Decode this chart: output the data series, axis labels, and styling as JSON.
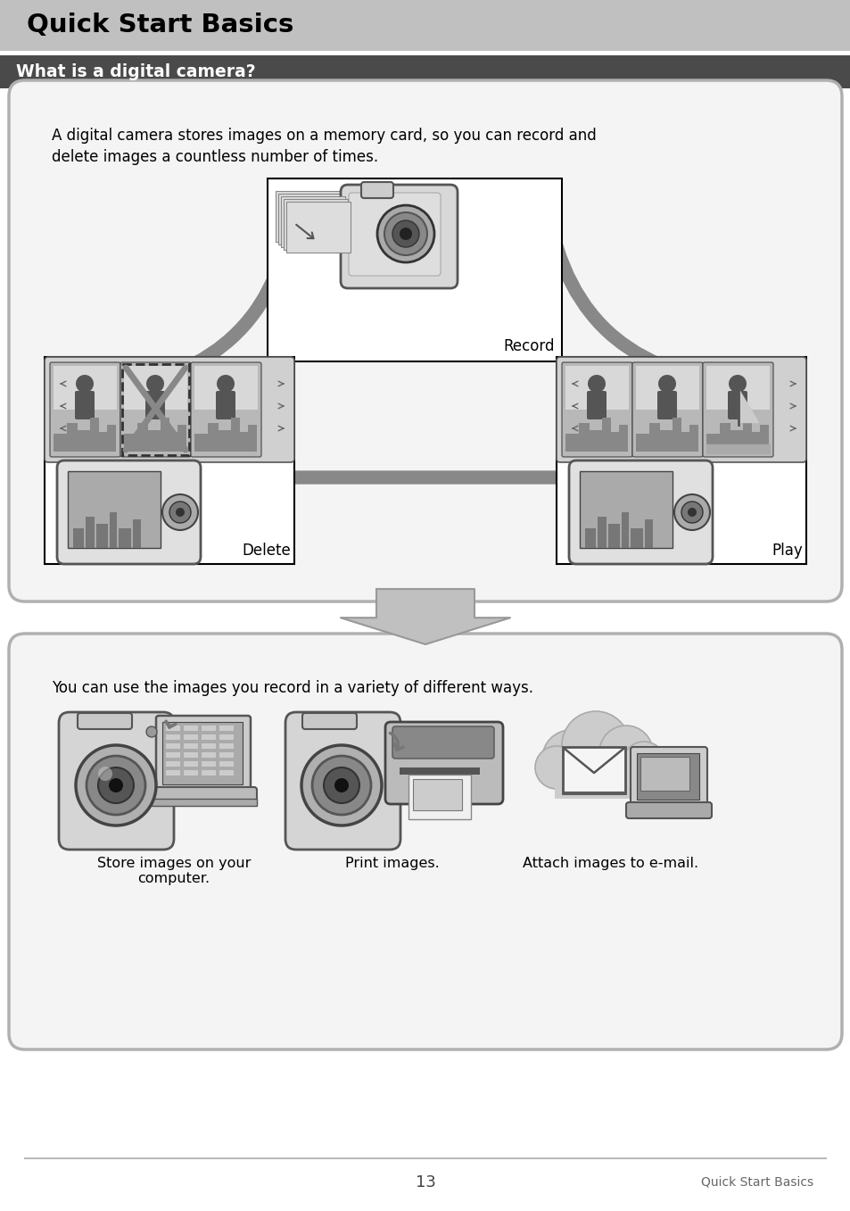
{
  "page_bg": "#ffffff",
  "header_bg": "#c0c0c0",
  "header_text": "Quick Start Basics",
  "header_text_color": "#000000",
  "subheader_bg": "#4a4a4a",
  "subheader_text": "What is a digital camera?",
  "subheader_text_color": "#ffffff",
  "box1_text_line1": "A digital camera stores images on a memory card, so you can record and",
  "box1_text_line2": "delete images a countless number of times.",
  "box2_text": "You can use the images you record in a variety of different ways.",
  "label_record": "Record",
  "label_delete": "Delete",
  "label_play": "Play",
  "caption1": "Store images on your\ncomputer.",
  "caption2": "Print images.",
  "caption3": "Attach images to e-mail.",
  "footer_line_color": "#bbbbbb",
  "footer_page": "13",
  "footer_right": "Quick Start Basics",
  "box_border_color": "#b0b0b0",
  "arrow_color": "#888888",
  "dark_gray": "#666666",
  "mid_gray": "#999999",
  "light_gray": "#cccccc",
  "lighter_gray": "#e0e0e0",
  "black": "#000000",
  "white": "#ffffff"
}
